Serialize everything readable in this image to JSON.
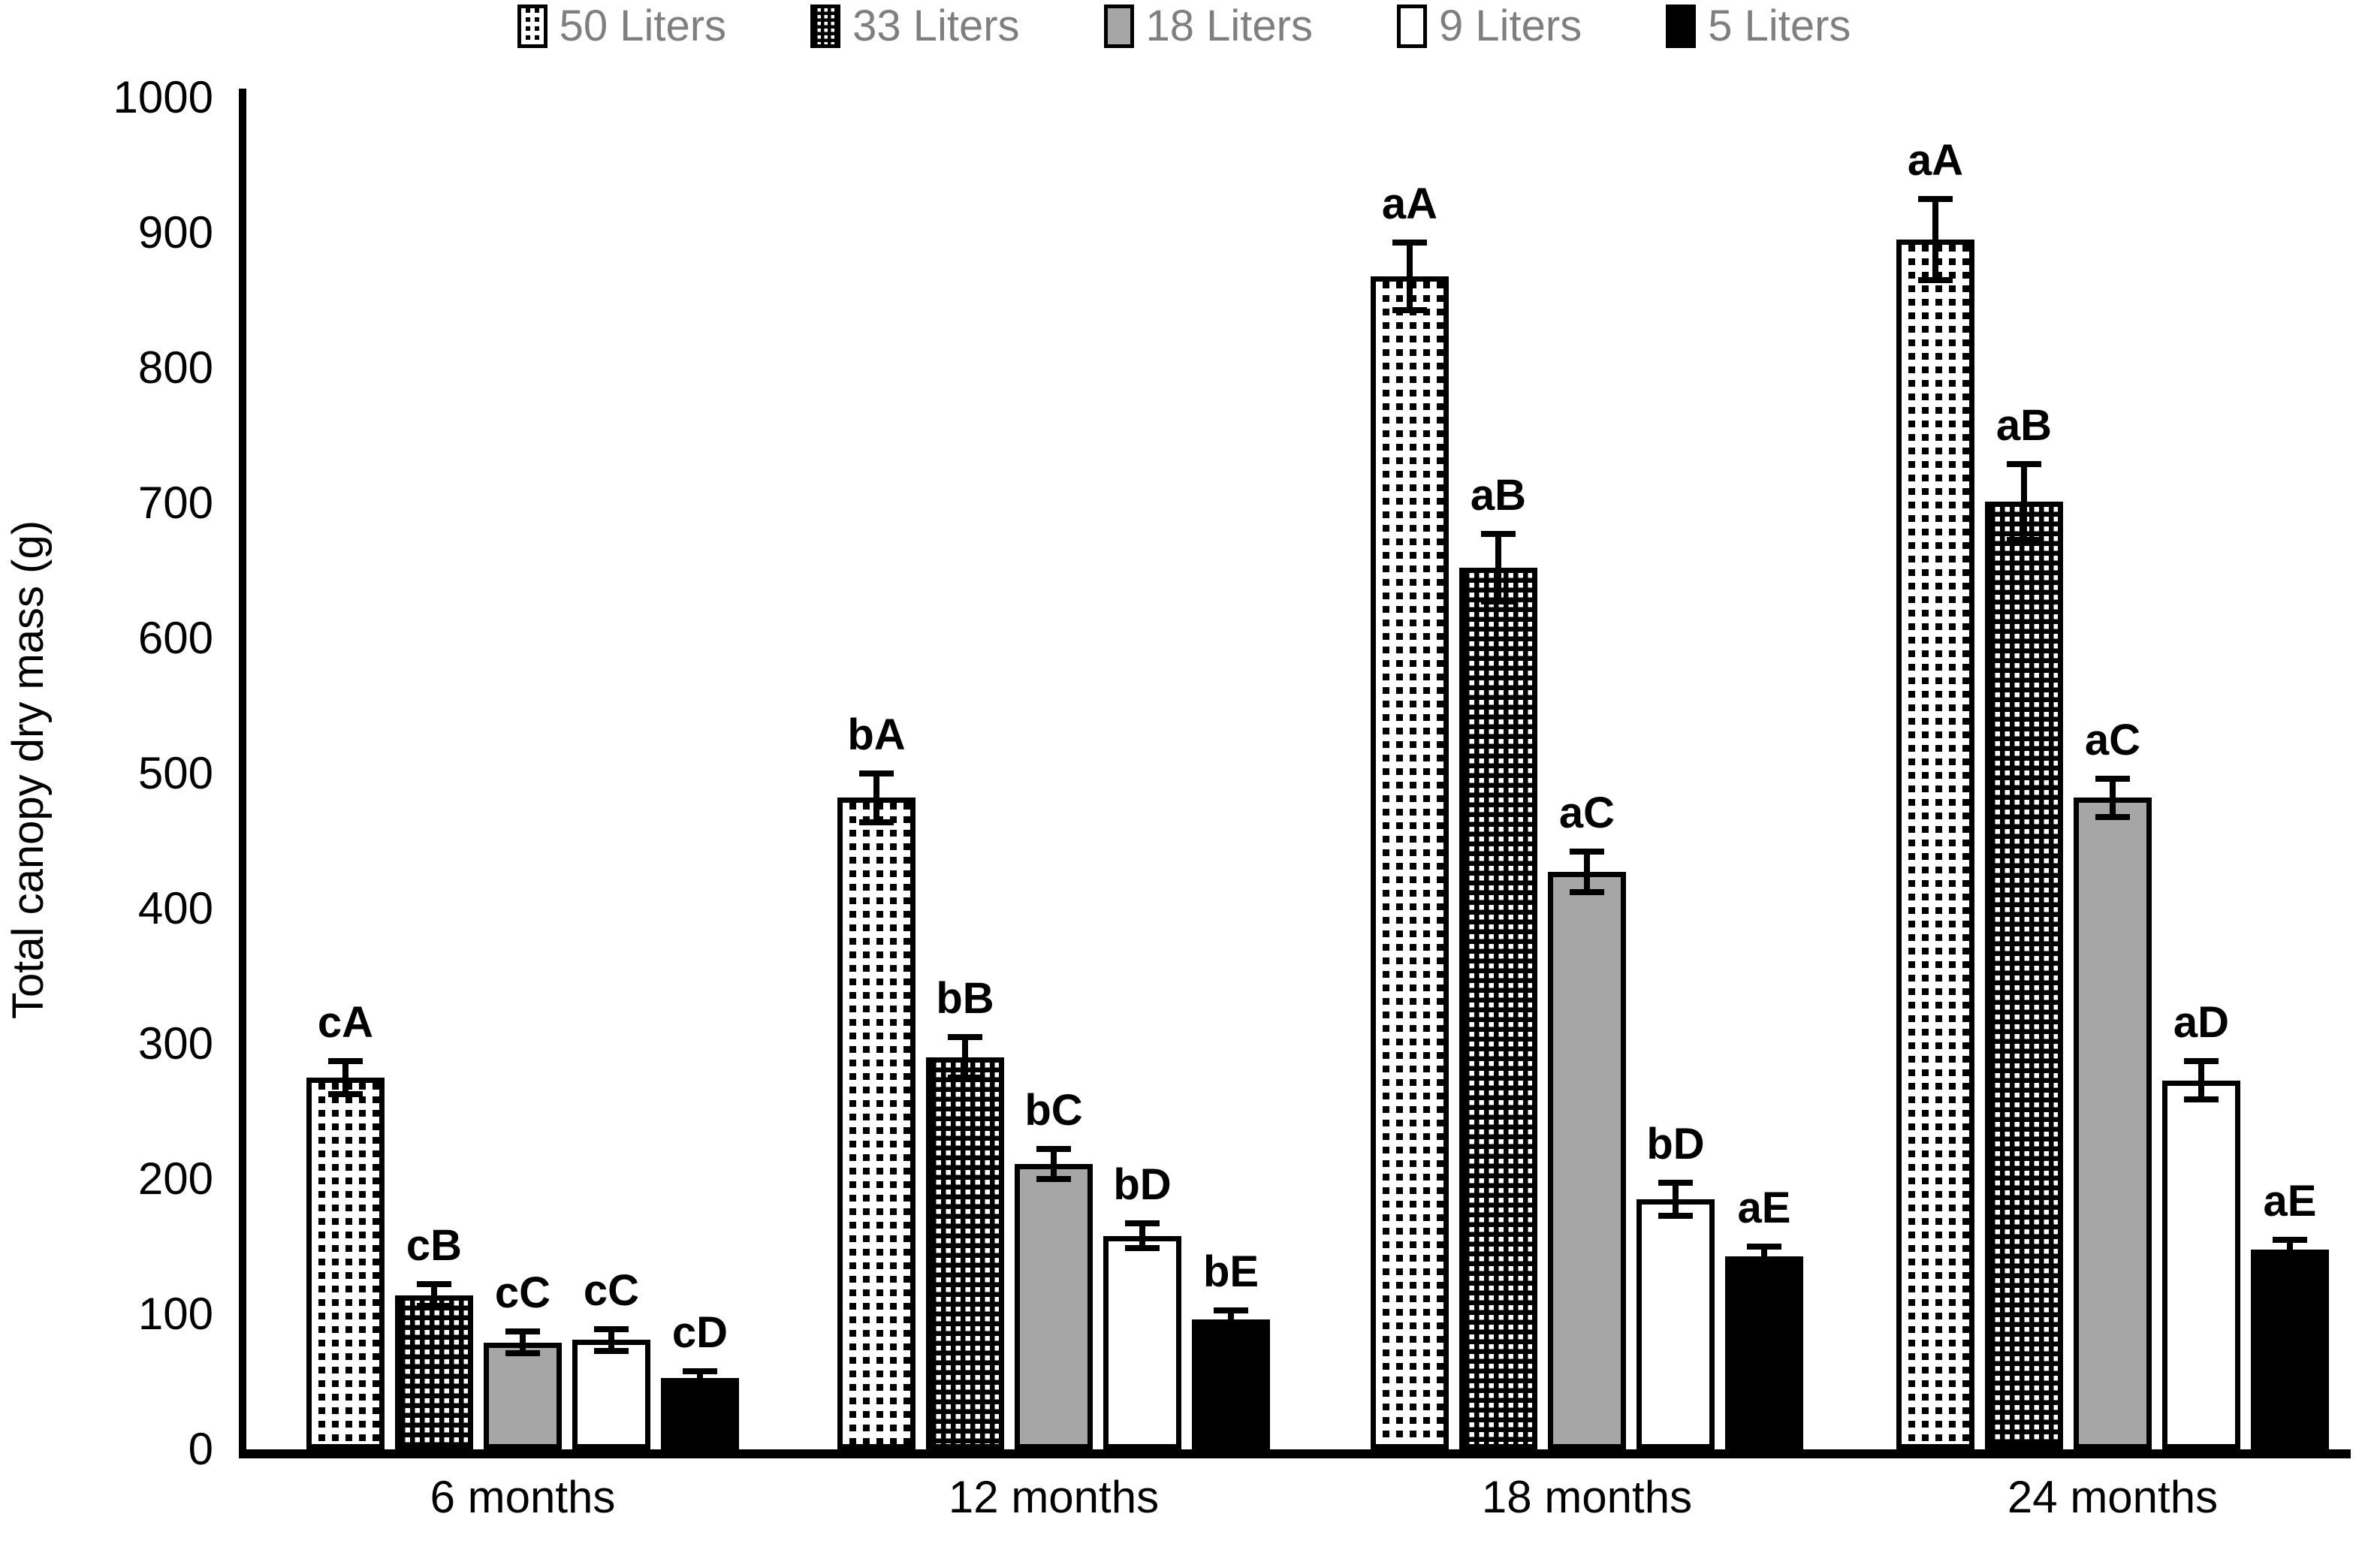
{
  "chart_data": {
    "type": "bar",
    "title": "",
    "xlabel": "",
    "ylabel": "Total canopy dry mass (g)",
    "ylim": [
      0,
      1000
    ],
    "ytick_interval": 100,
    "ytick_labels": [
      "0",
      "100",
      "200",
      "300",
      "400",
      "500",
      "600",
      "700",
      "800",
      "900",
      "1000"
    ],
    "grid": false,
    "legend_position": "top",
    "categories": [
      "6 months",
      "12 months",
      "18 months",
      "24 months"
    ],
    "series": [
      {
        "name": "50 Liters",
        "pattern": "black-dots-on-white",
        "values": [
          275,
          482,
          868,
          895
        ],
        "error_bars": [
          12,
          18,
          25,
          30
        ],
        "sig_labels": [
          "cA",
          "bA",
          "aA",
          "aA"
        ]
      },
      {
        "name": "33 Liters",
        "pattern": "white-dots-on-black",
        "values": [
          114,
          290,
          652,
          701
        ],
        "error_bars": [
          8,
          15,
          25,
          28
        ],
        "sig_labels": [
          "cB",
          "bB",
          "aB",
          "aB"
        ]
      },
      {
        "name": "18 Liters",
        "pattern": "solid-gray",
        "values": [
          79,
          211,
          427,
          482
        ],
        "error_bars": [
          8,
          11,
          15,
          14
        ],
        "sig_labels": [
          "cC",
          "bC",
          "aC",
          "aC"
        ]
      },
      {
        "name": "9 Liters",
        "pattern": "solid-white",
        "values": [
          81,
          158,
          185,
          273
        ],
        "error_bars": [
          8,
          9,
          12,
          14
        ],
        "sig_labels": [
          "cC",
          "bD",
          "bD",
          "aD"
        ]
      },
      {
        "name": "5 Liters",
        "pattern": "solid-black",
        "values": [
          53,
          96,
          143,
          148
        ],
        "error_bars": [
          5,
          7,
          7,
          7
        ],
        "sig_labels": [
          "cD",
          "bE",
          "aE",
          "aE"
        ]
      }
    ],
    "colors": {
      "bar_gray": "#a6a6a6",
      "bar_black": "#000000",
      "bar_white": "#ffffff",
      "legend_text": "#7f7f7f",
      "axis": "#000000",
      "sig_label_text": "#000000"
    }
  }
}
